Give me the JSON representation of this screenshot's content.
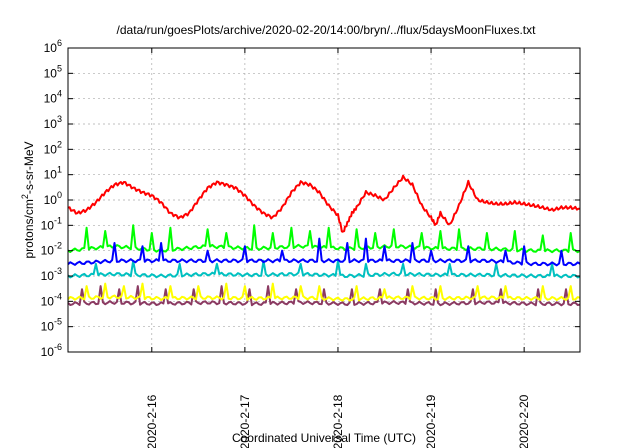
{
  "chart_data": {
    "type": "line",
    "title": "/data/run/goesPlots/archive/2020-02-20/14:00/bryn/../flux/5daysMoonFluxes.txt",
    "xlabel": "Coordinated Universal Time (UTC)",
    "ylabel": "protons/cm²-s-sr-MeV",
    "ylabel_parts": {
      "prefix": "protons/cm",
      "sup": "2",
      "suffix": "-s-sr-MeV"
    },
    "log_y": true,
    "ylim_exponents": [
      -6,
      6
    ],
    "y_ticks": [
      {
        "base": "10",
        "exp": "-6"
      },
      {
        "base": "10",
        "exp": "-5"
      },
      {
        "base": "10",
        "exp": "-4"
      },
      {
        "base": "10",
        "exp": "-3"
      },
      {
        "base": "10",
        "exp": "-2"
      },
      {
        "base": "10",
        "exp": "-1"
      },
      {
        "base": "10",
        "exp": "0"
      },
      {
        "base": "10",
        "exp": "1"
      },
      {
        "base": "10",
        "exp": "2"
      },
      {
        "base": "10",
        "exp": "3"
      },
      {
        "base": "10",
        "exp": "4"
      },
      {
        "base": "10",
        "exp": "5"
      },
      {
        "base": "10",
        "exp": "6"
      }
    ],
    "xlim_days": [
      15.1,
      20.6
    ],
    "x_ticks": [
      {
        "label": "2020-2-16",
        "day": 16
      },
      {
        "label": "2020-2-17",
        "day": 17
      },
      {
        "label": "2020-2-18",
        "day": 18
      },
      {
        "label": "2020-2-19",
        "day": 19
      },
      {
        "label": "2020-2-20",
        "day": 20
      }
    ],
    "grid": true,
    "legend": "none",
    "series": [
      {
        "color": "#ff0000",
        "x": [
          15.1,
          15.2,
          15.3,
          15.4,
          15.5,
          15.6,
          15.7,
          15.8,
          15.9,
          16.0,
          16.1,
          16.2,
          16.3,
          16.4,
          16.5,
          16.6,
          16.7,
          16.8,
          16.9,
          17.0,
          17.1,
          17.2,
          17.3,
          17.4,
          17.5,
          17.6,
          17.7,
          17.8,
          17.9,
          18.0,
          18.05,
          18.1,
          18.15,
          18.2,
          18.3,
          18.4,
          18.5,
          18.6,
          18.7,
          18.8,
          18.9,
          19.0,
          19.05,
          19.1,
          19.2,
          19.3,
          19.4,
          19.5,
          19.6,
          19.7,
          19.8,
          19.9,
          20.0,
          20.1,
          20.2,
          20.3,
          20.4,
          20.5,
          20.6
        ],
        "values": [
          0.5,
          0.3,
          0.4,
          0.8,
          2,
          4,
          5,
          3,
          2,
          1.5,
          0.8,
          0.3,
          0.2,
          0.3,
          1,
          3,
          5,
          4,
          3,
          1.5,
          0.6,
          0.3,
          0.2,
          0.5,
          2,
          5,
          4,
          2,
          0.6,
          0.25,
          0.05,
          0.12,
          0.3,
          0.5,
          2,
          1.5,
          1,
          3,
          8,
          4,
          0.6,
          0.2,
          0.1,
          0.3,
          0.1,
          0.6,
          5,
          1,
          0.8,
          0.7,
          0.7,
          0.8,
          0.7,
          0.6,
          0.5,
          0.4,
          0.5,
          0.5,
          0.45
        ]
      },
      {
        "color": "#00ff00",
        "x": [
          15.1,
          15.6,
          16.1,
          16.6,
          17.1,
          17.6,
          18.1,
          18.6,
          19.1,
          19.6,
          20.1,
          20.6
        ],
        "values": [
          0.01,
          0.015,
          0.01,
          0.015,
          0.012,
          0.015,
          0.012,
          0.015,
          0.012,
          0.012,
          0.01,
          0.01
        ],
        "spikes": [
          [
            15.3,
            0.08
          ],
          [
            15.5,
            0.06
          ],
          [
            15.8,
            0.1
          ],
          [
            16.0,
            0.05
          ],
          [
            16.2,
            0.08
          ],
          [
            16.6,
            0.07
          ],
          [
            16.8,
            0.05
          ],
          [
            17.1,
            0.1
          ],
          [
            17.3,
            0.05
          ],
          [
            17.5,
            0.08
          ],
          [
            17.7,
            0.06
          ],
          [
            17.9,
            0.08
          ],
          [
            18.2,
            0.07
          ],
          [
            18.4,
            0.05
          ],
          [
            18.6,
            0.07
          ],
          [
            18.9,
            0.05
          ],
          [
            19.1,
            0.06
          ],
          [
            19.3,
            0.07
          ],
          [
            19.6,
            0.05
          ],
          [
            19.9,
            0.06
          ],
          [
            20.2,
            0.04
          ],
          [
            20.5,
            0.05
          ]
        ]
      },
      {
        "color": "#0000ff",
        "x": [
          15.1,
          15.6,
          16.1,
          16.6,
          17.1,
          17.6,
          18.1,
          18.6,
          19.1,
          19.6,
          20.1,
          20.6
        ],
        "values": [
          0.003,
          0.004,
          0.004,
          0.004,
          0.004,
          0.004,
          0.004,
          0.004,
          0.004,
          0.004,
          0.003,
          0.003
        ],
        "spikes": [
          [
            15.6,
            0.02
          ],
          [
            15.9,
            0.015
          ],
          [
            16.1,
            0.02
          ],
          [
            16.6,
            0.01
          ],
          [
            17.0,
            0.015
          ],
          [
            17.4,
            0.01
          ],
          [
            17.8,
            0.03
          ],
          [
            18.1,
            0.02
          ],
          [
            18.3,
            0.03
          ],
          [
            18.5,
            0.015
          ],
          [
            18.8,
            0.02
          ],
          [
            19.0,
            0.01
          ],
          [
            19.4,
            0.015
          ],
          [
            19.8,
            0.01
          ],
          [
            20.0,
            0.015
          ],
          [
            20.4,
            0.01
          ]
        ]
      },
      {
        "color": "#00c0c0",
        "x": [
          15.1,
          15.6,
          16.1,
          16.6,
          17.1,
          17.6,
          18.1,
          18.6,
          19.1,
          19.6,
          20.1,
          20.6
        ],
        "values": [
          0.001,
          0.0012,
          0.001,
          0.0012,
          0.0011,
          0.0012,
          0.001,
          0.0012,
          0.0011,
          0.0011,
          0.001,
          0.001
        ],
        "spikes": [
          [
            15.4,
            0.003
          ],
          [
            15.8,
            0.004
          ],
          [
            16.3,
            0.003
          ],
          [
            16.7,
            0.003
          ],
          [
            17.2,
            0.004
          ],
          [
            17.6,
            0.003
          ],
          [
            18.0,
            0.004
          ],
          [
            18.3,
            0.003
          ],
          [
            18.7,
            0.003
          ],
          [
            19.2,
            0.003
          ],
          [
            19.7,
            0.003
          ],
          [
            20.3,
            0.003
          ]
        ]
      },
      {
        "color": "#ffff00",
        "x": [
          15.1,
          15.6,
          16.1,
          16.6,
          17.1,
          17.6,
          18.1,
          18.6,
          19.1,
          19.6,
          20.1,
          20.6
        ],
        "values": [
          0.00013,
          0.00015,
          0.00013,
          0.00014,
          0.00013,
          0.00014,
          0.00012,
          0.00014,
          0.00013,
          0.00014,
          0.00013,
          0.00013
        ],
        "spikes": [
          [
            15.3,
            0.0004
          ],
          [
            15.5,
            0.0005
          ],
          [
            15.7,
            0.0004
          ],
          [
            15.9,
            0.0005
          ],
          [
            16.2,
            0.0004
          ],
          [
            16.5,
            0.0004
          ],
          [
            16.8,
            0.0005
          ],
          [
            17.0,
            0.0004
          ],
          [
            17.3,
            0.0005
          ],
          [
            17.6,
            0.0004
          ],
          [
            17.8,
            0.0004
          ],
          [
            18.2,
            0.0004
          ],
          [
            18.5,
            0.0003
          ],
          [
            18.8,
            0.0004
          ],
          [
            19.1,
            0.0004
          ],
          [
            19.5,
            0.0004
          ],
          [
            19.8,
            0.0004
          ],
          [
            20.2,
            0.0004
          ],
          [
            20.5,
            0.0004
          ]
        ]
      },
      {
        "color": "#8b3a62",
        "x": [
          15.1,
          15.6,
          16.1,
          16.6,
          17.1,
          17.6,
          18.1,
          18.6,
          19.1,
          19.6,
          20.1,
          20.6
        ],
        "values": [
          8e-05,
          9e-05,
          8e-05,
          9e-05,
          8e-05,
          9e-05,
          8e-05,
          9e-05,
          8e-05,
          9e-05,
          8e-05,
          8e-05
        ],
        "spikes": [
          [
            15.25,
            0.0003
          ],
          [
            15.45,
            0.0004
          ],
          [
            15.65,
            0.0003
          ],
          [
            15.85,
            0.0004
          ],
          [
            16.15,
            0.0003
          ],
          [
            16.45,
            0.0003
          ],
          [
            16.75,
            0.0004
          ],
          [
            17.05,
            0.0003
          ],
          [
            17.25,
            0.0004
          ],
          [
            17.55,
            0.0003
          ],
          [
            17.85,
            0.0003
          ],
          [
            18.15,
            0.0003
          ],
          [
            18.45,
            0.0003
          ],
          [
            18.75,
            0.0003
          ],
          [
            19.05,
            0.0003
          ],
          [
            19.45,
            0.0003
          ],
          [
            19.75,
            0.0003
          ],
          [
            20.15,
            0.0003
          ],
          [
            20.45,
            0.0003
          ]
        ]
      }
    ]
  }
}
